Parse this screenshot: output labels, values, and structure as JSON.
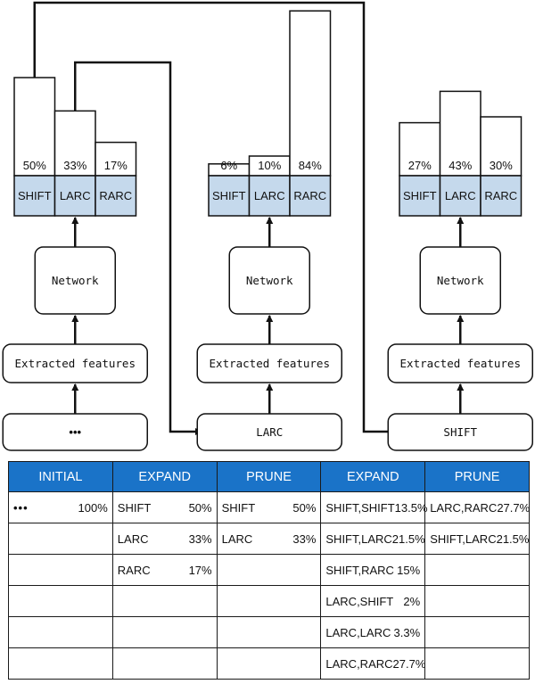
{
  "panels": [
    {
      "input": "•••",
      "features": "Extracted features",
      "network": "Network",
      "bars": [
        {
          "label": "SHIFT",
          "pct": "50%",
          "value": 50
        },
        {
          "label": "LARC",
          "pct": "33%",
          "value": 33
        },
        {
          "label": "RARC",
          "pct": "17%",
          "value": 17
        }
      ]
    },
    {
      "input": "LARC",
      "features": "Extracted features",
      "network": "Network",
      "bars": [
        {
          "label": "SHIFT",
          "pct": "6%",
          "value": 6
        },
        {
          "label": "LARC",
          "pct": "10%",
          "value": 10
        },
        {
          "label": "RARC",
          "pct": "84%",
          "value": 84
        }
      ]
    },
    {
      "input": "SHIFT",
      "features": "Extracted features",
      "network": "Network",
      "bars": [
        {
          "label": "SHIFT",
          "pct": "27%",
          "value": 27
        },
        {
          "label": "LARC",
          "pct": "43%",
          "value": 43
        },
        {
          "label": "RARC",
          "pct": "30%",
          "value": 30
        }
      ]
    }
  ],
  "table": {
    "headers": [
      "INITIAL",
      "EXPAND",
      "PRUNE",
      "EXPAND",
      "PRUNE"
    ],
    "rows": [
      [
        {
          "name": "•••",
          "value": "100%"
        },
        {
          "name": "SHIFT",
          "value": "50%"
        },
        {
          "name": "SHIFT",
          "value": "50%"
        },
        {
          "name": "SHIFT,SHIFT",
          "value": "13.5%"
        },
        {
          "name": "LARC,RARC",
          "value": "27.7%"
        }
      ],
      [
        {
          "name": "",
          "value": ""
        },
        {
          "name": "LARC",
          "value": "33%"
        },
        {
          "name": "LARC",
          "value": "33%"
        },
        {
          "name": "SHIFT,LARC",
          "value": "21.5%"
        },
        {
          "name": "SHIFT,LARC",
          "value": "21.5%"
        }
      ],
      [
        {
          "name": "",
          "value": ""
        },
        {
          "name": "RARC",
          "value": "17%"
        },
        {
          "name": "",
          "value": ""
        },
        {
          "name": "SHIFT,RARC",
          "value": "15%"
        },
        {
          "name": "",
          "value": ""
        }
      ],
      [
        {
          "name": "",
          "value": ""
        },
        {
          "name": "",
          "value": ""
        },
        {
          "name": "",
          "value": ""
        },
        {
          "name": "LARC,SHIFT",
          "value": "2%"
        },
        {
          "name": "",
          "value": ""
        }
      ],
      [
        {
          "name": "",
          "value": ""
        },
        {
          "name": "",
          "value": ""
        },
        {
          "name": "",
          "value": ""
        },
        {
          "name": "LARC,LARC",
          "value": "3.3%"
        },
        {
          "name": "",
          "value": ""
        }
      ],
      [
        {
          "name": "",
          "value": ""
        },
        {
          "name": "",
          "value": ""
        },
        {
          "name": "",
          "value": ""
        },
        {
          "name": "LARC,RARC",
          "value": "27.7%"
        },
        {
          "name": "",
          "value": ""
        }
      ]
    ]
  }
}
